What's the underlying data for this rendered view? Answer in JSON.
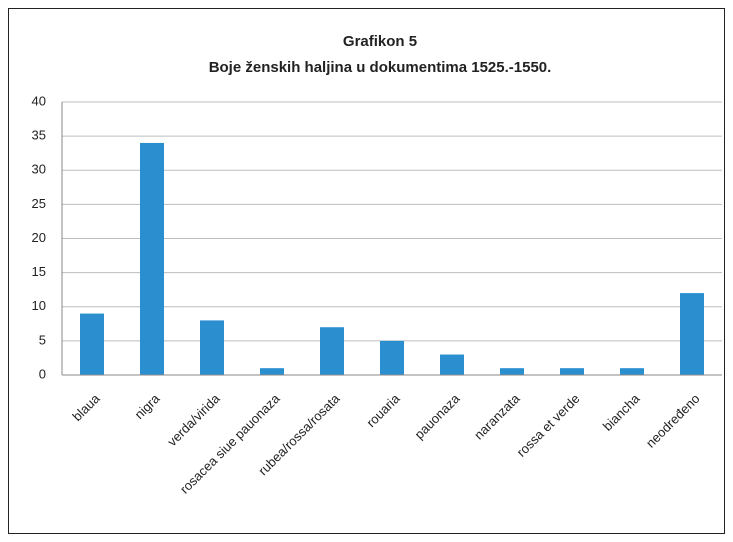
{
  "chart_data": {
    "type": "bar",
    "title": "Grafikon 5",
    "subtitle": "Boje ženskih haljina u dokumentima 1525.-1550.",
    "categories": [
      "blaua",
      "nigra",
      "verda/virida",
      "rosacea siue pauonaza",
      "rubea/rossa/rosata",
      "rouaria",
      "pauonaza",
      "naranzata",
      "rossa et verde",
      "biancha",
      "neodređeno"
    ],
    "values": [
      9,
      34,
      8,
      1,
      7,
      5,
      3,
      1,
      1,
      1,
      12
    ],
    "color": "#2b8fcf",
    "ylim": [
      0,
      40
    ],
    "yticks": [
      0,
      5,
      10,
      15,
      20,
      25,
      30,
      35,
      40
    ],
    "grid": true
  }
}
